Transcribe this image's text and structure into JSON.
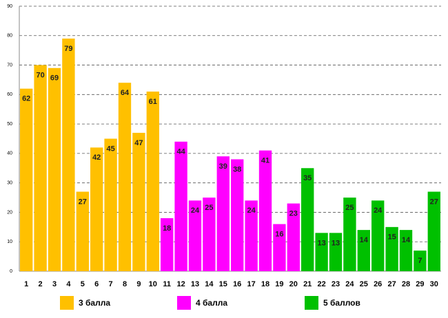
{
  "chart_data": {
    "type": "bar",
    "categories": [
      "1",
      "2",
      "3",
      "4",
      "5",
      "6",
      "7",
      "8",
      "9",
      "10",
      "11",
      "12",
      "13",
      "14",
      "15",
      "16",
      "17",
      "18",
      "19",
      "20",
      "21",
      "22",
      "23",
      "24",
      "25",
      "26",
      "27",
      "28",
      "29",
      "30"
    ],
    "series": [
      {
        "name": "3 балла",
        "color": "#ffc000",
        "values": [
          62,
          70,
          69,
          79,
          27,
          42,
          45,
          64,
          47,
          61,
          null,
          null,
          null,
          null,
          null,
          null,
          null,
          null,
          null,
          null,
          null,
          null,
          null,
          null,
          null,
          null,
          null,
          null,
          null,
          null
        ]
      },
      {
        "name": "4 балла",
        "color": "#ff00ff",
        "values": [
          null,
          null,
          null,
          null,
          null,
          null,
          null,
          null,
          null,
          null,
          18,
          44,
          24,
          25,
          39,
          38,
          24,
          41,
          16,
          23,
          null,
          null,
          null,
          null,
          null,
          null,
          null,
          null,
          null,
          null
        ]
      },
      {
        "name": "5 баллов",
        "color": "#00c000",
        "values": [
          null,
          null,
          null,
          null,
          null,
          null,
          null,
          null,
          null,
          null,
          null,
          null,
          null,
          null,
          null,
          null,
          null,
          null,
          null,
          null,
          35,
          13,
          13,
          25,
          14,
          24,
          15,
          14,
          7,
          27
        ]
      }
    ],
    "ylim": [
      0,
      90
    ],
    "yticks": [
      0,
      10,
      20,
      30,
      40,
      50,
      60,
      70,
      80,
      90
    ],
    "grid": true,
    "legend": "bottom"
  }
}
